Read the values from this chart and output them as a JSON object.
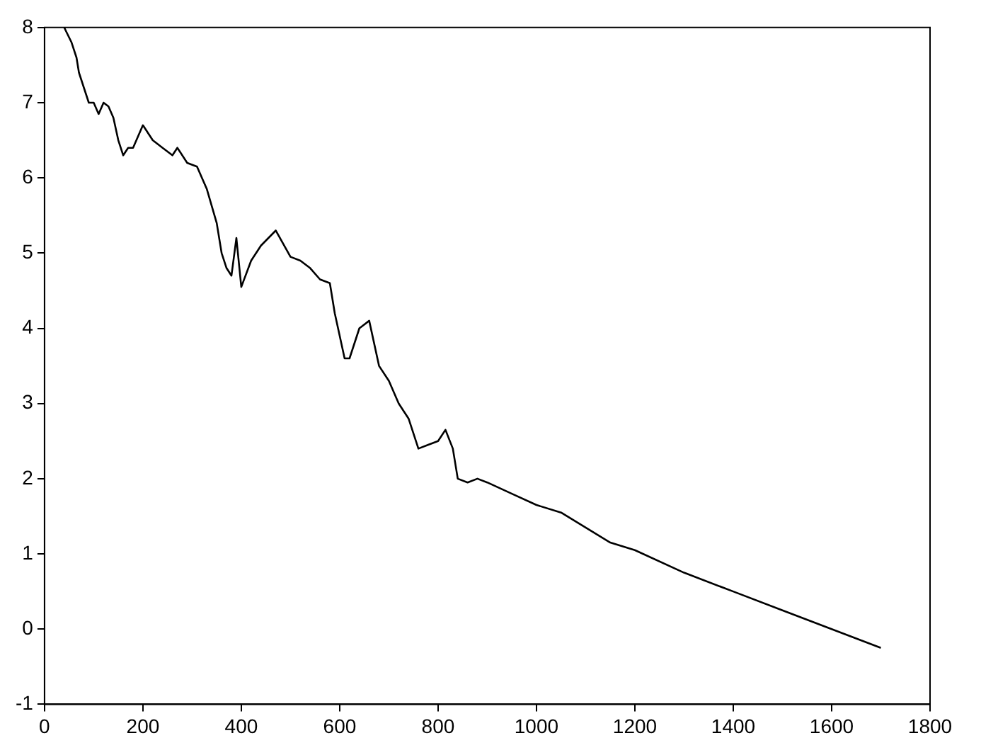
{
  "chart_data": {
    "type": "line",
    "x": [
      40,
      55,
      65,
      70,
      80,
      90,
      100,
      110,
      120,
      130,
      140,
      150,
      160,
      170,
      180,
      200,
      220,
      240,
      260,
      270,
      290,
      310,
      330,
      350,
      360,
      370,
      380,
      390,
      400,
      420,
      440,
      470,
      500,
      520,
      540,
      560,
      580,
      590,
      610,
      620,
      640,
      660,
      680,
      700,
      720,
      740,
      760,
      780,
      800,
      815,
      830,
      840,
      860,
      880,
      900,
      950,
      1000,
      1050,
      1100,
      1150,
      1200,
      1300,
      1400,
      1500,
      1600,
      1700
    ],
    "series": [
      {
        "color": "#000000",
        "values": [
          8.0,
          7.8,
          7.6,
          7.4,
          7.2,
          7.0,
          7.0,
          6.85,
          7.0,
          6.95,
          6.8,
          6.5,
          6.3,
          6.4,
          6.4,
          6.7,
          6.5,
          6.4,
          6.3,
          6.4,
          6.2,
          6.15,
          5.85,
          5.4,
          5.0,
          4.8,
          4.7,
          5.2,
          4.55,
          4.9,
          5.1,
          5.3,
          4.95,
          4.9,
          4.8,
          4.65,
          4.6,
          4.2,
          3.6,
          3.6,
          4.0,
          4.1,
          3.5,
          3.3,
          3.0,
          2.8,
          2.4,
          2.45,
          2.5,
          2.65,
          2.4,
          2.0,
          1.95,
          2.0,
          1.95,
          1.8,
          1.65,
          1.55,
          1.35,
          1.15,
          1.05,
          0.75,
          0.5,
          0.25,
          0.0,
          -0.25
        ]
      }
    ],
    "xlim": [
      0,
      1800
    ],
    "xticks": [
      0,
      200,
      400,
      600,
      800,
      1000,
      1200,
      1400,
      1600,
      1800
    ],
    "ylim": [
      -1,
      8
    ],
    "yticks": [
      -1,
      0,
      1,
      2,
      3,
      4,
      5,
      6,
      7,
      8
    ],
    "grid": false,
    "legend": false,
    "marker": "none",
    "line_style": "solid"
  }
}
